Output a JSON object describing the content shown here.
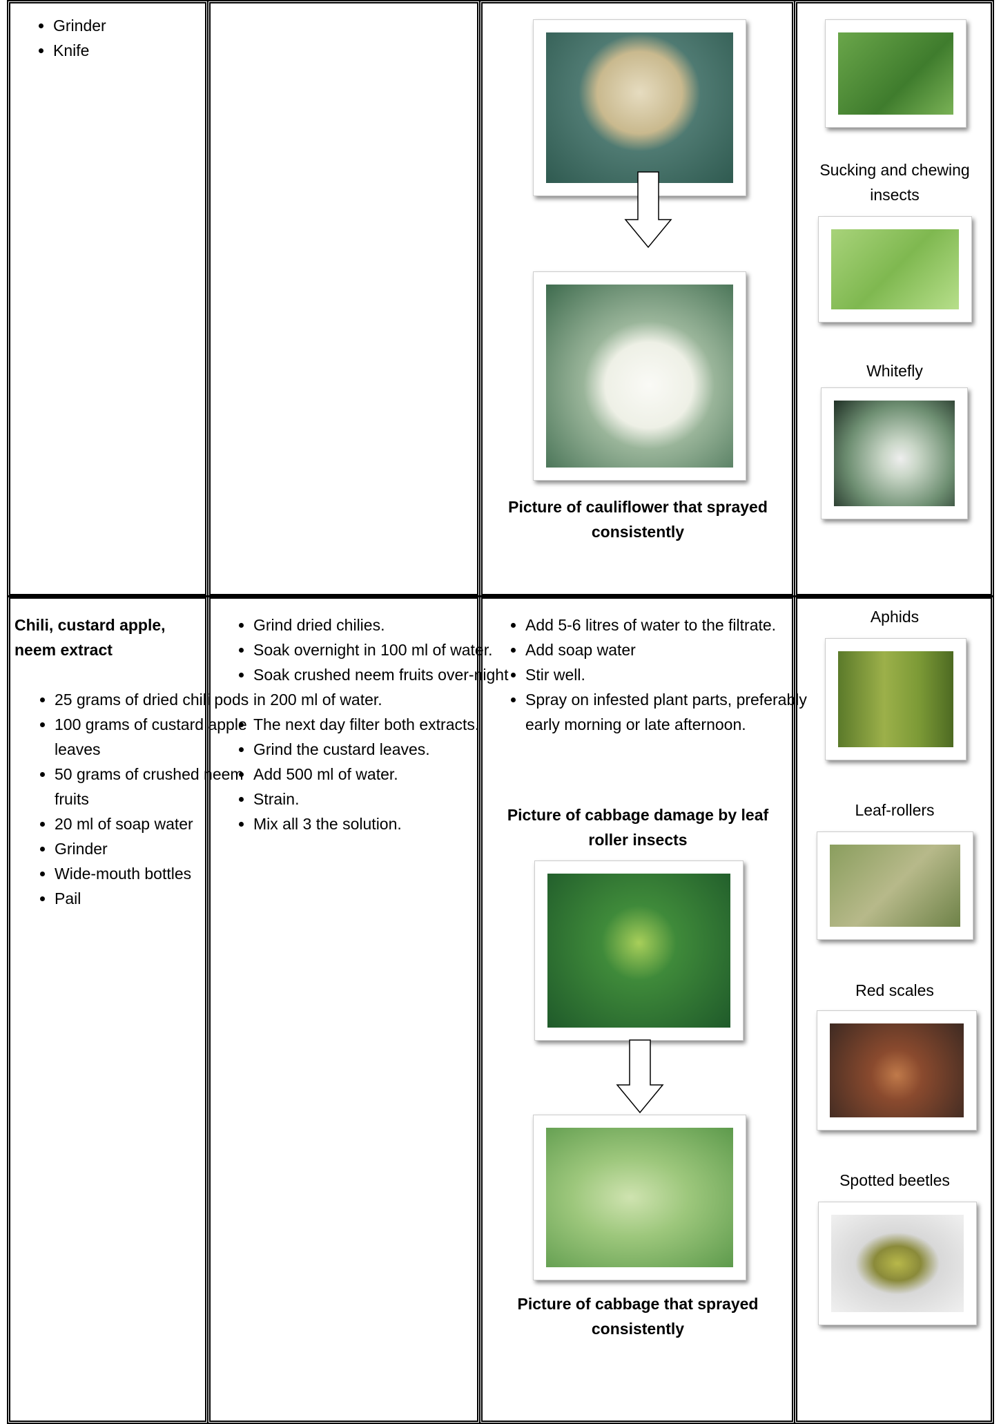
{
  "table": {
    "rows": [
      {
        "materials": [
          "Grinder",
          "Knife"
        ],
        "application_caption": "Picture of cauliflower that sprayed consistently",
        "pests": [
          "Sucking and chewing insects",
          "Whitefly"
        ]
      },
      {
        "title": "Chili, custard apple, neem extract",
        "materials": [
          "25 grams of dried chili pods",
          "100 grams of custard apple leaves",
          "50 grams of crushed neem fruits",
          "20 ml of soap water",
          "Grinder",
          "Wide-mouth bottles",
          "Pail"
        ],
        "procedure": [
          "Grind dried chilies.",
          "Soak overnight in 100 ml of water.",
          "Soak crushed neem fruits over-night in 200 ml of water.",
          "The next day filter both extracts.",
          "Grind the custard leaves.",
          "Add 500 ml of water.",
          "Strain.",
          "Mix all 3 the solution."
        ],
        "application": [
          "Add 5-6 litres of water to the filtrate.",
          "Add soap water",
          "Stir well.",
          "Spray on infested plant parts, preferably early morning or late afternoon."
        ],
        "damage_caption": "Picture of cabbage damage by leaf roller insects",
        "application_caption": "Picture of cabbage that sprayed consistently",
        "pests": [
          "Aphids",
          "Leaf-rollers",
          "Red scales",
          "Spotted beetles"
        ]
      }
    ]
  }
}
